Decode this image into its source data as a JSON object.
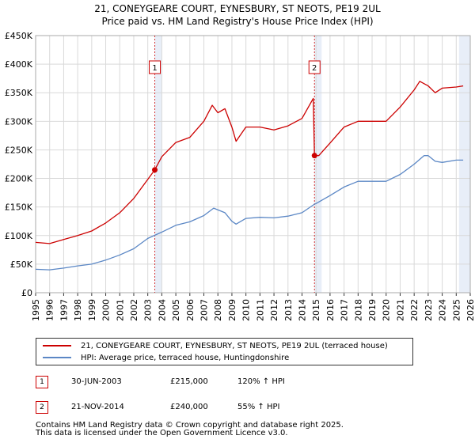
{
  "title_line1": "21, CONEYGEARE COURT, EYNESBURY, ST NEOTS, PE19 2UL",
  "title_line2": "Price paid vs. HM Land Registry's House Price Index (HPI)",
  "colors": {
    "property": "#cc0000",
    "hpi": "#5b87c5",
    "marker": "#cc0000",
    "grid": "#d9d9d9",
    "shade": "#e8eef8"
  },
  "chart_data": {
    "type": "line",
    "title": "Price paid vs. HM Land Registry's House Price Index (HPI)",
    "xlabel": "",
    "ylabel": "",
    "xlim": [
      1995,
      2026
    ],
    "ylim": [
      0,
      450000
    ],
    "yticks": [
      0,
      50000,
      100000,
      150000,
      200000,
      250000,
      300000,
      350000,
      400000,
      450000
    ],
    "ytick_labels": [
      "£0",
      "£50K",
      "£100K",
      "£150K",
      "£200K",
      "£250K",
      "£300K",
      "£350K",
      "£400K",
      "£450K"
    ],
    "xticks": [
      1995,
      1996,
      1997,
      1998,
      1999,
      2000,
      2001,
      2002,
      2003,
      2004,
      2005,
      2006,
      2007,
      2008,
      2009,
      2010,
      2011,
      2012,
      2013,
      2014,
      2015,
      2016,
      2017,
      2018,
      2019,
      2020,
      2021,
      2022,
      2023,
      2024,
      2025,
      2026
    ],
    "xtick_labels": [
      "1995",
      "1996",
      "1997",
      "1998",
      "1999",
      "2000",
      "2001",
      "2002",
      "2003",
      "2004",
      "2005",
      "2006",
      "2007",
      "2008",
      "2009",
      "2010",
      "2011",
      "2012",
      "2013",
      "2014",
      "2015",
      "2016",
      "2017",
      "2018",
      "2019",
      "2020",
      "2021",
      "2022",
      "2023",
      "2024",
      "2025",
      "2026"
    ],
    "grid": true,
    "shaded_spans": [
      [
        2003.5,
        2004.0
      ],
      [
        2014.89,
        2015.4
      ],
      [
        2025.2,
        2026.0
      ]
    ],
    "series": [
      {
        "name": "21, CONEYGEARE COURT, EYNESBURY, ST NEOTS, PE19 2UL (terraced house)",
        "x": [
          1995,
          1996,
          1997,
          1998,
          1999,
          2000,
          2001,
          2002,
          2003.5,
          2004,
          2005,
          2006,
          2007,
          2007.6,
          2008,
          2008.5,
          2009,
          2009.3,
          2010,
          2011,
          2012,
          2013,
          2014,
          2014.8,
          2014.89,
          2015.2,
          2016,
          2017,
          2018,
          2019,
          2020,
          2021,
          2022,
          2022.4,
          2023,
          2023.5,
          2024,
          2025,
          2025.5
        ],
        "values": [
          88000,
          86000,
          93000,
          100000,
          108000,
          122000,
          140000,
          165000,
          215000,
          238000,
          263000,
          272000,
          300000,
          328000,
          315000,
          322000,
          290000,
          265000,
          290000,
          290000,
          285000,
          292000,
          305000,
          340000,
          240000,
          240000,
          262000,
          290000,
          300000,
          300000,
          300000,
          325000,
          355000,
          370000,
          362000,
          350000,
          358000,
          360000,
          362000
        ]
      },
      {
        "name": "HPI: Average price, terraced house, Huntingdonshire",
        "x": [
          1995,
          1996,
          1997,
          1998,
          1999,
          2000,
          2001,
          2002,
          2003,
          2004,
          2005,
          2006,
          2007,
          2007.7,
          2008.5,
          2009,
          2009.3,
          2010,
          2011,
          2012,
          2013,
          2014,
          2014.89,
          2015,
          2016,
          2017,
          2018,
          2019,
          2020,
          2021,
          2022,
          2022.7,
          2023,
          2023.5,
          2024,
          2025,
          2025.5
        ],
        "values": [
          41000,
          40000,
          43000,
          47000,
          50000,
          57000,
          66000,
          77000,
          95000,
          106000,
          118000,
          124000,
          135000,
          148000,
          140000,
          125000,
          120000,
          130000,
          132000,
          131000,
          134000,
          140000,
          155000,
          156000,
          170000,
          185000,
          195000,
          195000,
          195000,
          207000,
          225000,
          240000,
          240000,
          230000,
          228000,
          232000,
          232000
        ]
      }
    ],
    "sales": [
      {
        "label": "1",
        "x": 2003.5,
        "value": 215000
      },
      {
        "label": "2",
        "x": 2014.89,
        "value": 240000
      }
    ]
  },
  "legend": {
    "property_label": "21, CONEYGEARE COURT, EYNESBURY, ST NEOTS, PE19 2UL (terraced house)",
    "hpi_label": "HPI: Average price, terraced house, Huntingdonshire"
  },
  "sales_table": [
    {
      "num": "1",
      "date": "30-JUN-2003",
      "price": "£215,000",
      "hpi": "120% ↑ HPI"
    },
    {
      "num": "2",
      "date": "21-NOV-2014",
      "price": "£240,000",
      "hpi": "55% ↑ HPI"
    }
  ],
  "footer_line1": "Contains HM Land Registry data © Crown copyright and database right 2025.",
  "footer_line2": "This data is licensed under the Open Government Licence v3.0."
}
